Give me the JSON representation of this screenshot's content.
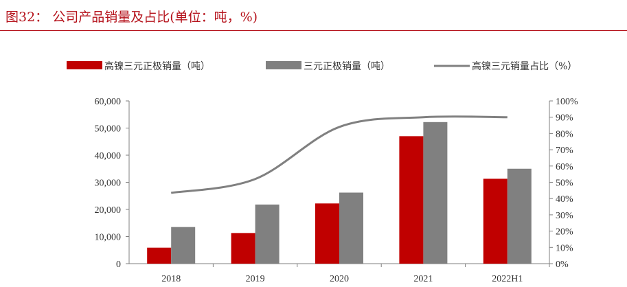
{
  "header": {
    "title": "图32：  公司产品销量及占比(单位：吨，%)"
  },
  "colors": {
    "accent": "#b5121b",
    "series_red": "#c00000",
    "series_gray": "#808080",
    "line": "#808080"
  },
  "chart_data": {
    "type": "bar",
    "title": "",
    "categories": [
      "2018",
      "2019",
      "2020",
      "2021",
      "2022H1"
    ],
    "series": [
      {
        "name": "高镍三元正极销量（吨）",
        "type": "bar",
        "axis": "left",
        "color": "#c00000",
        "values": [
          5900,
          11300,
          22200,
          47000,
          31300
        ]
      },
      {
        "name": "三元正极销量（吨）",
        "type": "bar",
        "axis": "left",
        "color": "#808080",
        "values": [
          13500,
          21800,
          26200,
          52200,
          35000
        ]
      },
      {
        "name": "高镍三元销量占比（%）",
        "type": "line",
        "axis": "right",
        "color": "#808080",
        "values": [
          43.5,
          52,
          84,
          90,
          90
        ]
      }
    ],
    "y_left": {
      "min": 0,
      "max": 60000,
      "ticks": [
        "0",
        "10,000",
        "20,000",
        "30,000",
        "40,000",
        "50,000",
        "60,000"
      ]
    },
    "y_right": {
      "min": 0,
      "max": 100,
      "ticks": [
        "0%",
        "10%",
        "20%",
        "30%",
        "40%",
        "50%",
        "60%",
        "70%",
        "80%",
        "90%",
        "100%"
      ]
    },
    "legend_position": "top",
    "grid": false
  }
}
